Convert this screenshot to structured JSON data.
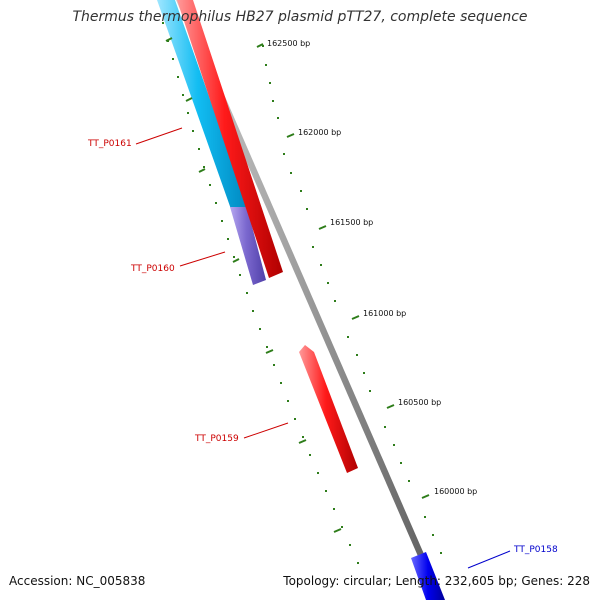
{
  "title": "Thermus thermophilus HB27 plasmid pTT27, complete sequence",
  "footer": {
    "accession": "Accession: NC_005838",
    "summary": "Topology: circular; Length: 232,605 bp; Genes: 228"
  },
  "colors": {
    "backbone": "#8a8a8a",
    "tick": "#2e7d1a",
    "forward_gene": "#ff0000",
    "reverse_gene": "#00b7ef",
    "other_gene": "#7b68cf",
    "highlight_gene": "#0000ee",
    "label_red": "#cc0000",
    "label_blue": "#0000cc"
  },
  "scale_labels": [
    "162500 bp",
    "162000 bp",
    "161500 bp",
    "161000 bp",
    "160500 bp",
    "160000 bp"
  ],
  "genes": [
    {
      "label": "TT_P0161",
      "color": "#00b7ef",
      "label_color": "#cc0000"
    },
    {
      "label": "TT_P0160",
      "color": "#7b68cf",
      "label_color": "#cc0000"
    },
    {
      "label": "TT_P0159",
      "color": "#ff0000",
      "label_color": "#cc0000"
    },
    {
      "label": "TT_P0158",
      "color": "#0000ee",
      "label_color": "#0000cc"
    }
  ]
}
